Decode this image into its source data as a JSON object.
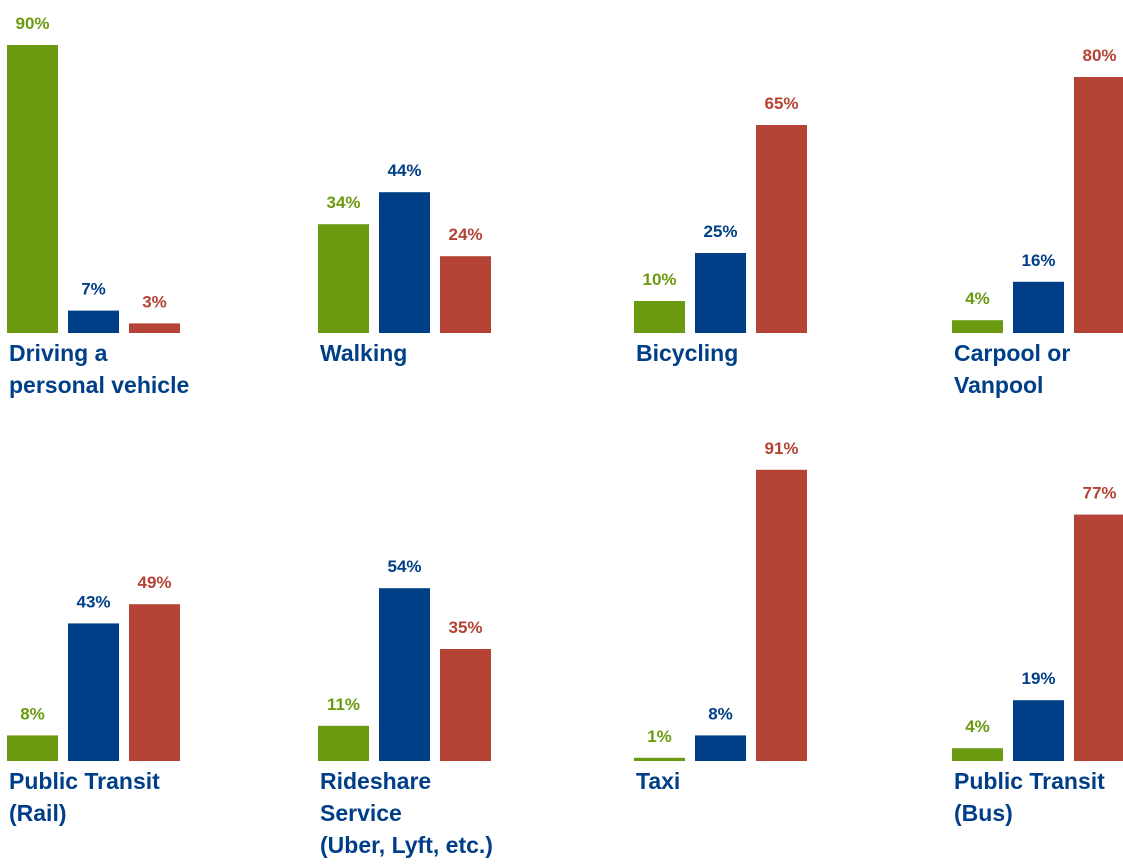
{
  "chart_data": [
    {
      "type": "bar",
      "category": "Driving a personal vehicle",
      "category_lines": [
        "Driving a",
        "personal vehicle"
      ],
      "values": [
        90,
        7,
        3
      ],
      "labels": [
        "90%",
        "7%",
        "3%"
      ]
    },
    {
      "type": "bar",
      "category": "Walking",
      "category_lines": [
        "Walking"
      ],
      "values": [
        34,
        44,
        24
      ],
      "labels": [
        "34%",
        "44%",
        "24%"
      ]
    },
    {
      "type": "bar",
      "category": "Bicycling",
      "category_lines": [
        "Bicycling"
      ],
      "values": [
        10,
        25,
        65
      ],
      "labels": [
        "10%",
        "25%",
        "65%"
      ]
    },
    {
      "type": "bar",
      "category": "Carpool or Vanpool",
      "category_lines": [
        "Carpool or",
        "Vanpool"
      ],
      "values": [
        4,
        16,
        80
      ],
      "labels": [
        "4%",
        "16%",
        "80%"
      ]
    },
    {
      "type": "bar",
      "category": "Public Transit (Rail)",
      "category_lines": [
        "Public Transit",
        "(Rail)"
      ],
      "values": [
        8,
        43,
        49
      ],
      "labels": [
        "8%",
        "43%",
        "49%"
      ]
    },
    {
      "type": "bar",
      "category": "Rideshare Service (Uber, Lyft, etc.)",
      "category_lines": [
        "Rideshare",
        "Service",
        "(Uber, Lyft, etc.)"
      ],
      "values": [
        11,
        54,
        35
      ],
      "labels": [
        "11%",
        "54%",
        "35%"
      ]
    },
    {
      "type": "bar",
      "category": "Taxi",
      "category_lines": [
        "Taxi"
      ],
      "values": [
        1,
        8,
        91
      ],
      "labels": [
        "1%",
        "8%",
        "91%"
      ]
    },
    {
      "type": "bar",
      "category": "Public Transit (Bus)",
      "category_lines": [
        "Public Transit",
        "(Bus)"
      ],
      "values": [
        4,
        19,
        77
      ],
      "labels": [
        "4%",
        "19%",
        "77%"
      ]
    }
  ],
  "ylim": [
    0,
    100
  ],
  "colors": {
    "series_1": "#6a9a0f",
    "series_2": "#003f87",
    "series_3": "#b54335",
    "category_text": "#003f87"
  }
}
